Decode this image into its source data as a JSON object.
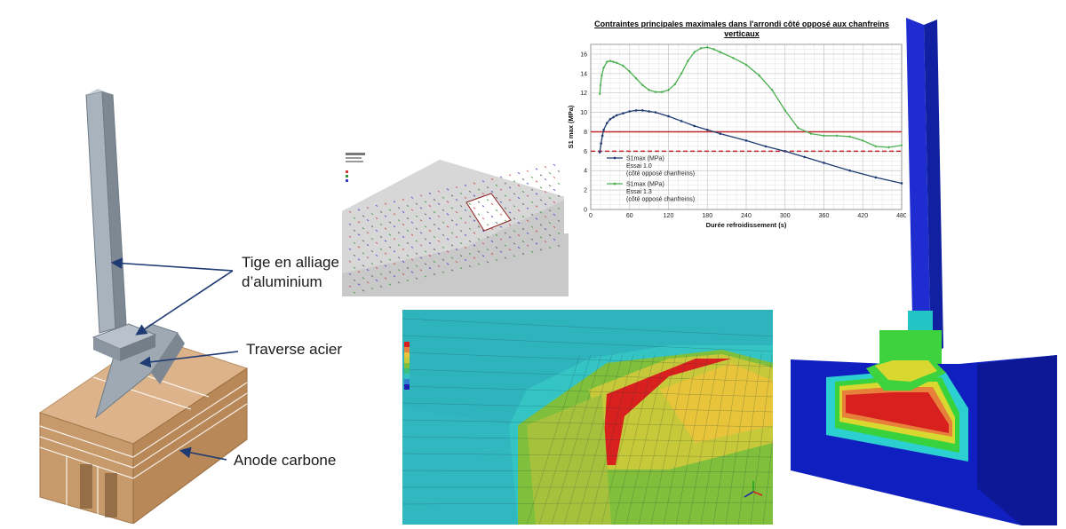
{
  "callouts": {
    "tige_line1": "Tige en alliage",
    "tige_line2": "d’aluminium",
    "traverse": "Traverse acier",
    "anode": "Anode carbone"
  },
  "colors": {
    "anode": "#d2a679",
    "steel_rod": "#8d9aa6",
    "callout_arrow": "#1f3b73",
    "s1_essai_1_0": "#1f3b73",
    "s1_essai_1_3": "#4caf50",
    "threshold": "#c0282d"
  },
  "chart_data": {
    "type": "line",
    "title": "Contraintes principales maximales dans l'arrondi côté opposé aux chanfreins verticaux",
    "xlabel": "Durée refroidissement (s)",
    "ylabel": "S1 max (MPa)",
    "xlim": [
      0,
      480
    ],
    "ylim": [
      0,
      17
    ],
    "xticks": [
      0,
      60,
      120,
      180,
      240,
      300,
      360,
      420,
      480
    ],
    "yticks": [
      0,
      2,
      4,
      6,
      8,
      10,
      12,
      14,
      16
    ],
    "grid": true,
    "legend_position": "center-left",
    "series": [
      {
        "name": "S1max (MPa)",
        "name_line2": "Essai 1.0",
        "name_line3": "(côté opposé chanfreins)",
        "color": "#1f3b73",
        "x": [
          14,
          16,
          18,
          20,
          25,
          30,
          35,
          40,
          50,
          60,
          70,
          80,
          90,
          100,
          120,
          140,
          160,
          180,
          200,
          240,
          270,
          300,
          330,
          360,
          400,
          440,
          480
        ],
        "y": [
          5.9,
          6.8,
          7.6,
          8.2,
          8.9,
          9.3,
          9.5,
          9.7,
          9.9,
          10.1,
          10.2,
          10.2,
          10.1,
          10.0,
          9.6,
          9.1,
          8.6,
          8.2,
          7.8,
          7.1,
          6.5,
          6.0,
          5.4,
          4.8,
          4.0,
          3.3,
          2.7
        ]
      },
      {
        "name": "S1max (MPa)",
        "name_line2": "Essai 1.3",
        "name_line3": "(côté opposé chanfreins)",
        "color": "#4caf50",
        "x": [
          14,
          15,
          17,
          20,
          25,
          30,
          35,
          40,
          50,
          60,
          70,
          80,
          90,
          100,
          110,
          120,
          130,
          140,
          150,
          160,
          170,
          180,
          190,
          200,
          220,
          240,
          260,
          280,
          300,
          320,
          340,
          360,
          380,
          400,
          420,
          440,
          460,
          480
        ],
        "y": [
          11.9,
          12.8,
          13.8,
          14.6,
          15.2,
          15.3,
          15.2,
          15.1,
          14.8,
          14.2,
          13.5,
          12.8,
          12.3,
          12.1,
          12.1,
          12.3,
          12.9,
          14.0,
          15.3,
          16.2,
          16.6,
          16.7,
          16.5,
          16.2,
          15.6,
          14.9,
          13.8,
          12.3,
          10.2,
          8.4,
          7.8,
          7.6,
          7.6,
          7.5,
          7.1,
          6.5,
          6.4,
          6.6
        ]
      }
    ],
    "reference_lines": [
      {
        "y": 8.0,
        "style": "solid",
        "color": "#c0282d"
      },
      {
        "y": 6.0,
        "style": "dashed",
        "color": "#c0282d"
      }
    ]
  }
}
